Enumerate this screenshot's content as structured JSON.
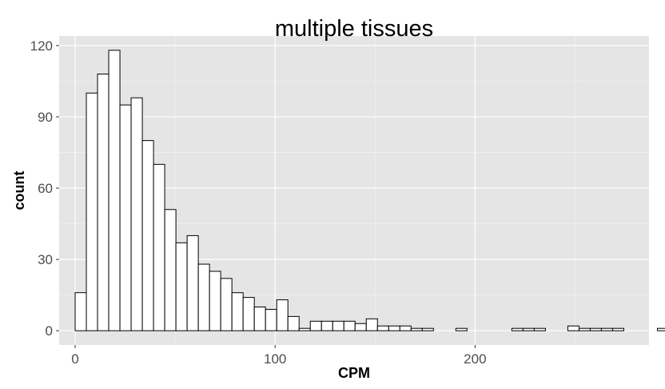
{
  "chart_data": {
    "type": "bar",
    "title": "multiple tissues",
    "xlabel": "CPM",
    "ylabel": "count",
    "xlim": [
      -8,
      287
    ],
    "ylim": [
      -6,
      124
    ],
    "xticks": [
      0,
      100,
      200
    ],
    "yticks": [
      0,
      30,
      60,
      90,
      120
    ],
    "x_tick_labels": [
      "0",
      "100",
      "200"
    ],
    "y_tick_labels": [
      "0",
      "30",
      "60",
      "90",
      "120"
    ],
    "grid": true,
    "bin_width": 5.6,
    "bin_start": -5.6,
    "counts": [
      0,
      16,
      100,
      108,
      118,
      95,
      98,
      80,
      70,
      51,
      37,
      40,
      28,
      25,
      22,
      16,
      14,
      10,
      9,
      13,
      6,
      1,
      4,
      4,
      4,
      4,
      3,
      5,
      2,
      2,
      2,
      1,
      1,
      0,
      0,
      1,
      0,
      0,
      0,
      0,
      1,
      1,
      1,
      0,
      0,
      2,
      1,
      1,
      1,
      1,
      0,
      0,
      0,
      1
    ],
    "colors": {
      "panel_background": "#e5e5e5",
      "grid_major": "#ffffff",
      "grid_minor": "#f2f2f2",
      "bar_fill": "#ffffff",
      "bar_outline": "#000000",
      "tick_text": "#4d4d4d"
    }
  }
}
